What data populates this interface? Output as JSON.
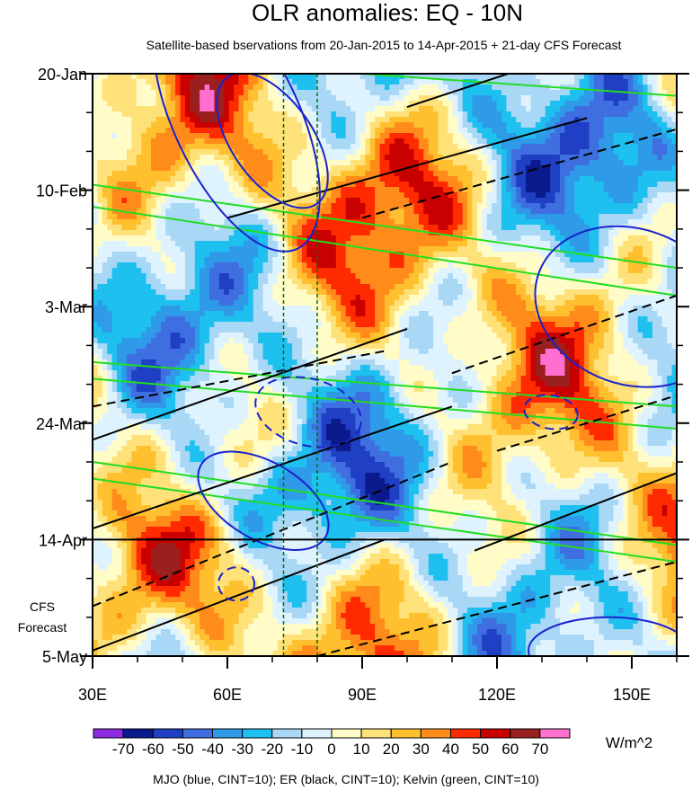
{
  "chart_data": {
    "type": "heatmap",
    "title": "OLR anomalies: EQ - 10N",
    "subtitle": "Satellite-based bservations from 20-Jan-2015 to 14-Apr-2015 + 21-day CFS Forecast",
    "x_range": [
      30,
      160
    ],
    "x_ticks": [
      {
        "value": 30,
        "label": "30E"
      },
      {
        "value": 60,
        "label": "60E"
      },
      {
        "value": 90,
        "label": "90E"
      },
      {
        "value": 120,
        "label": "120E"
      },
      {
        "value": 150,
        "label": "150E"
      }
    ],
    "y_range_days": [
      0,
      105
    ],
    "y_ticks": [
      {
        "day": 0,
        "label": "20-Jan"
      },
      {
        "day": 21,
        "label": "10-Feb"
      },
      {
        "day": 42,
        "label": "3-Mar"
      },
      {
        "day": 63,
        "label": "24-Mar"
      },
      {
        "day": 84,
        "label": "14-Apr"
      },
      {
        "day": 105,
        "label": "5-May"
      }
    ],
    "forecast_label": [
      "CFS",
      "Forecast"
    ],
    "forecast_start_day": 84,
    "reference_longitudes": [
      72.5,
      80
    ],
    "colorbar": {
      "ticks": [
        "-70",
        "-60",
        "-50",
        "-40",
        "-30",
        "-20",
        "-10",
        "0",
        "10",
        "20",
        "30",
        "40",
        "50",
        "60",
        "70"
      ],
      "colors": [
        "#8b2be2",
        "#0a1a8c",
        "#1f3fc4",
        "#3f6ee0",
        "#2e9ae8",
        "#1ec0f0",
        "#a8d8f5",
        "#dff3ff",
        "#fffcc8",
        "#ffe17a",
        "#ffc030",
        "#ff8c1a",
        "#ff2a00",
        "#c80000",
        "#9a2020",
        "#ff6fd0"
      ],
      "units": "W/m^2"
    },
    "footer": "MJO (blue, CINT=10); ER (black, CINT=10); Kelvin (green, CINT=10)"
  }
}
